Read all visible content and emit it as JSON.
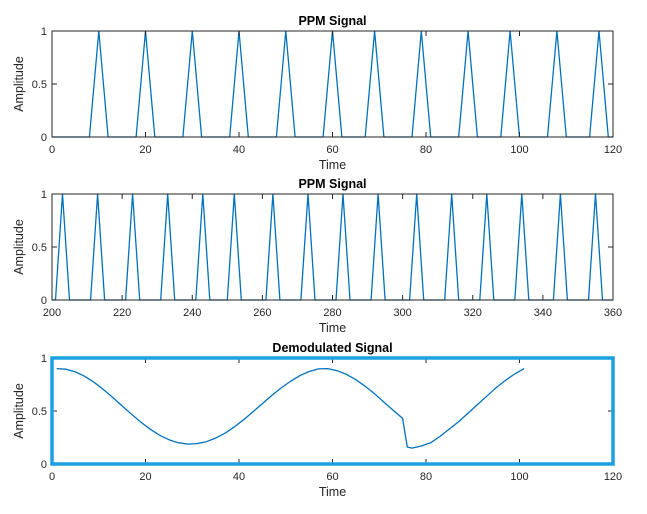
{
  "chart_data": [
    {
      "type": "line",
      "title": "PPM Signal",
      "xlabel": "Time",
      "ylabel": "Amplitude",
      "xlim": [
        0,
        120
      ],
      "ylim": [
        0,
        1
      ],
      "xticks": [
        0,
        20,
        40,
        60,
        80,
        100,
        120
      ],
      "yticks": [
        0,
        0.5,
        1
      ],
      "ytick_labels": [
        "0",
        "0.5",
        "1"
      ],
      "grid": false,
      "color": "#0072BD",
      "pulse_width": 2,
      "pulse_centers": [
        10,
        20,
        30,
        40,
        50,
        60,
        69,
        79,
        89,
        98,
        108,
        117
      ],
      "highlight_box": false
    },
    {
      "type": "line",
      "title": "PPM Signal",
      "xlabel": "Time",
      "ylabel": "Amplitude",
      "xlim": [
        200,
        360
      ],
      "ylim": [
        0,
        1
      ],
      "xticks": [
        200,
        220,
        240,
        260,
        280,
        300,
        320,
        340,
        360
      ],
      "yticks": [
        0,
        0.5,
        1
      ],
      "ytick_labels": [
        "0",
        "0.5",
        "1"
      ],
      "grid": false,
      "color": "#0072BD",
      "pulse_width": 2,
      "pulse_centers": [
        203,
        213,
        223,
        233,
        243,
        252,
        263,
        273,
        283,
        293,
        304,
        314,
        324,
        334,
        345,
        355
      ],
      "highlight_box": false
    },
    {
      "type": "line",
      "title": "Demodulated Signal",
      "xlabel": "Time",
      "ylabel": "Amplitude",
      "xlim": [
        0,
        120
      ],
      "ylim": [
        0,
        1
      ],
      "xticks": [
        0,
        20,
        40,
        60,
        80,
        100,
        120
      ],
      "yticks": [
        0,
        0.5,
        1
      ],
      "ytick_labels": [
        "0",
        "0.5",
        "1"
      ],
      "grid": false,
      "color": "#0072BD",
      "highlight_box": true,
      "highlight_color": "#1BA1E2",
      "x": [
        1,
        3,
        5,
        7,
        9,
        11,
        13,
        15,
        17,
        19,
        21,
        23,
        25,
        26,
        27,
        29,
        31,
        33,
        35,
        37,
        39,
        41,
        43,
        45,
        47,
        49,
        51,
        53,
        55,
        57,
        59,
        61,
        63,
        65,
        67,
        69,
        71,
        73,
        75,
        76,
        77,
        79,
        81,
        83,
        85,
        87,
        89,
        91,
        93,
        95,
        97,
        99,
        101
      ],
      "y": [
        0.9,
        0.894,
        0.869,
        0.827,
        0.771,
        0.703,
        0.627,
        0.548,
        0.47,
        0.395,
        0.328,
        0.272,
        0.229,
        0.213,
        0.201,
        0.188,
        0.192,
        0.21,
        0.244,
        0.291,
        0.35,
        0.418,
        0.493,
        0.57,
        0.646,
        0.717,
        0.779,
        0.833,
        0.873,
        0.897,
        0.9,
        0.88,
        0.845,
        0.795,
        0.733,
        0.662,
        0.584,
        0.506,
        0.43,
        0.16,
        0.15,
        0.17,
        0.2,
        0.26,
        0.33,
        0.4,
        0.48,
        0.56,
        0.64,
        0.72,
        0.79,
        0.85,
        0.9
      ]
    }
  ]
}
